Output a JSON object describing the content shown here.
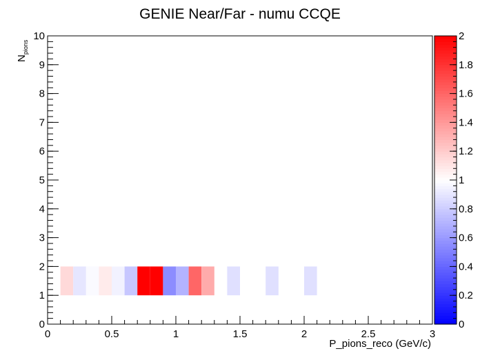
{
  "chart_data": {
    "type": "heatmap",
    "title": "GENIE Near/Far - numu CCQE",
    "xlabel": "P_pions_reco (GeV/c)",
    "ylabel_main": "N",
    "ylabel_sub": "pions",
    "xlim": [
      0,
      3
    ],
    "ylim": [
      0,
      10
    ],
    "zlim": [
      0,
      2
    ],
    "x_ticks": [
      "0",
      "0.5",
      "1",
      "1.5",
      "2",
      "2.5",
      "3"
    ],
    "y_ticks": [
      "0",
      "1",
      "2",
      "3",
      "4",
      "5",
      "6",
      "7",
      "8",
      "9",
      "10"
    ],
    "z_ticks": [
      "0",
      "0.2",
      "0.4",
      "0.6",
      "0.8",
      "1",
      "1.2",
      "1.4",
      "1.6",
      "1.8",
      "2"
    ],
    "bin_width_x": 0.1,
    "bin_height_y": 1,
    "cells": [
      {
        "x0": 0.1,
        "y0": 1,
        "z": 1.15
      },
      {
        "x0": 0.2,
        "y0": 1,
        "z": 0.9
      },
      {
        "x0": 0.3,
        "y0": 1,
        "z": 0.98
      },
      {
        "x0": 0.4,
        "y0": 1,
        "z": 1.08
      },
      {
        "x0": 0.5,
        "y0": 1,
        "z": 0.95
      },
      {
        "x0": 0.6,
        "y0": 1,
        "z": 0.78
      },
      {
        "x0": 0.7,
        "y0": 1,
        "z": 2.0
      },
      {
        "x0": 0.8,
        "y0": 1,
        "z": 2.0
      },
      {
        "x0": 0.9,
        "y0": 1,
        "z": 0.55
      },
      {
        "x0": 1.0,
        "y0": 1,
        "z": 0.7
      },
      {
        "x0": 1.1,
        "y0": 1,
        "z": 1.6
      },
      {
        "x0": 1.2,
        "y0": 1,
        "z": 1.33
      },
      {
        "x0": 1.4,
        "y0": 1,
        "z": 0.88
      },
      {
        "x0": 1.7,
        "y0": 1,
        "z": 0.88
      },
      {
        "x0": 2.0,
        "y0": 1,
        "z": 0.88
      }
    ],
    "palette": {
      "low": "#0000ff",
      "mid": "#ffffff",
      "high": "#ff0000"
    }
  }
}
